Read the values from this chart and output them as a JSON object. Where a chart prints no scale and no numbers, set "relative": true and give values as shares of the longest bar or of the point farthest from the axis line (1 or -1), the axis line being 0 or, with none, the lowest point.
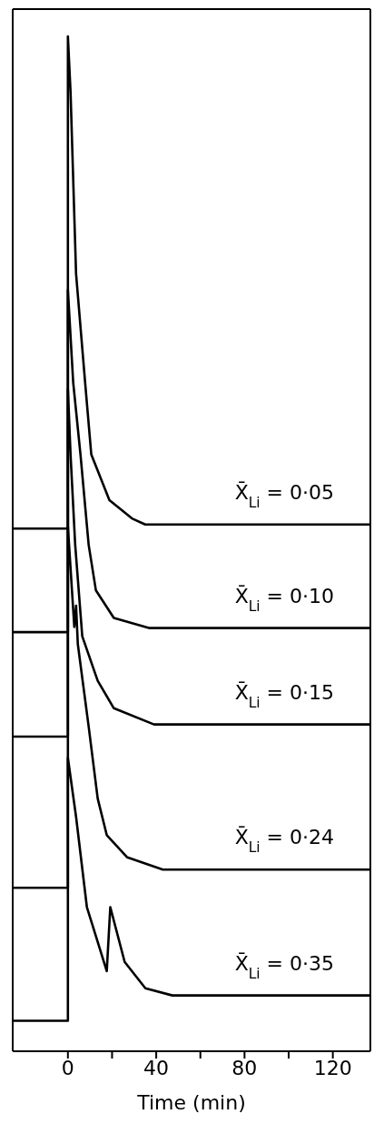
{
  "chart_data": {
    "type": "line",
    "xlabel": "Time (min)",
    "relative": true,
    "xlim": [
      -25,
      137
    ],
    "xticks": [
      0,
      {
        "value": 20,
        "label": null
      },
      40,
      {
        "value": 60,
        "label": null
      },
      80,
      {
        "value": 100,
        "label": null
      },
      120
    ],
    "marker": "none",
    "line_style": "solid",
    "series": [
      {
        "name": "X̄$_{Li}$ = 0·05",
        "color": "#000000",
        "x": [
          -25,
          0,
          0,
          1.2,
          3.7,
          7.8,
          10.6,
          18.8,
          29,
          35,
          137
        ],
        "values": [
          0.515,
          0.515,
          1.0,
          0.945,
          0.766,
          0.659,
          0.588,
          0.543,
          0.525,
          0.519,
          0.519
        ]
      },
      {
        "name": "X̄$_{Li}$ = 0·10",
        "color": "#000000",
        "x": [
          -25,
          0,
          0,
          2.4,
          5.7,
          9.4,
          12.7,
          20.8,
          37,
          137
        ],
        "values": [
          0.413,
          0.413,
          0.75,
          0.659,
          0.588,
          0.499,
          0.454,
          0.427,
          0.417,
          0.417
        ]
      },
      {
        "name": "X̄$_{Li}$ = 0·15",
        "color": "#000000",
        "x": [
          -25,
          0,
          0,
          1.2,
          3.3,
          6.5,
          13.5,
          20.8,
          39,
          137
        ],
        "values": [
          0.31,
          0.31,
          0.652,
          0.588,
          0.499,
          0.409,
          0.365,
          0.338,
          0.322,
          0.322
        ]
      },
      {
        "name": "X̄$_{Li}$ = 0·24",
        "color": "#000000",
        "x": [
          -25,
          0,
          0,
          2.9,
          3.7,
          4.5,
          9.4,
          13.5,
          17.6,
          26.9,
          43,
          137
        ],
        "values": [
          0.161,
          0.161,
          0.517,
          0.418,
          0.439,
          0.401,
          0.32,
          0.249,
          0.213,
          0.191,
          0.179,
          0.179
        ]
      },
      {
        "name": "X̄$_{Li}$ = 0·35",
        "color": "#000000",
        "x": [
          -25,
          0,
          0,
          3.7,
          8.6,
          17.6,
          19.2,
          25.7,
          35.1,
          47.3,
          137
        ],
        "values": [
          0.03,
          0.03,
          0.289,
          0.231,
          0.142,
          0.079,
          0.142,
          0.088,
          0.062,
          0.055,
          0.055
        ]
      }
    ]
  }
}
